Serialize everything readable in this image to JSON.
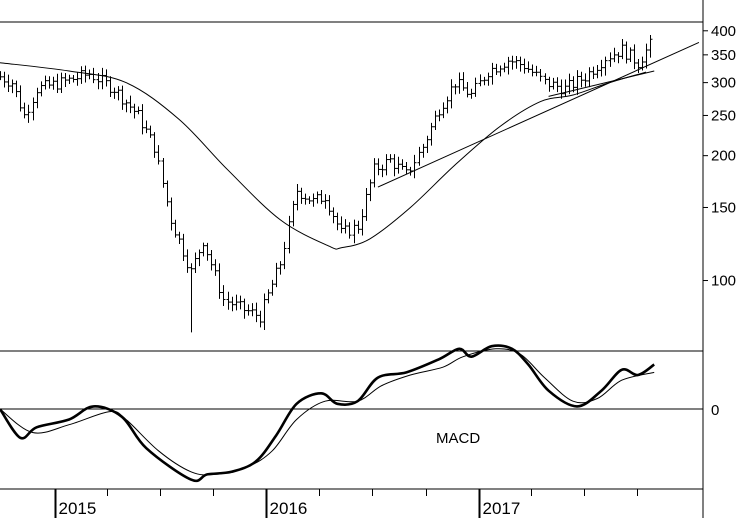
{
  "chart_data": [
    {
      "type": "ohlc",
      "scale": "log",
      "ylim": [
        68,
        420
      ],
      "yticks": [
        {
          "value": 400,
          "label": "400"
        },
        {
          "value": 350,
          "label": "350"
        },
        {
          "value": 300,
          "label": "300"
        },
        {
          "value": 250,
          "label": "250"
        },
        {
          "value": 200,
          "label": "200"
        },
        {
          "value": 150,
          "label": "150"
        },
        {
          "value": 100,
          "label": "100"
        }
      ],
      "x_axis": [
        {
          "date": "2015-01-01",
          "label": "2015"
        },
        {
          "date": "2015-04-01",
          "label": ""
        },
        {
          "date": "2015-07-01",
          "label": ""
        },
        {
          "date": "2015-10-01",
          "label": ""
        },
        {
          "date": "2016-01-01",
          "label": "2016"
        },
        {
          "date": "2016-04-01",
          "label": ""
        },
        {
          "date": "2016-07-01",
          "label": ""
        },
        {
          "date": "2016-10-01",
          "label": ""
        },
        {
          "date": "2017-01-01",
          "label": "2017"
        },
        {
          "date": "2017-04-01",
          "label": ""
        },
        {
          "date": "2017-07-01",
          "label": ""
        },
        {
          "date": "2017-10-01",
          "label": ""
        }
      ],
      "x_start": "2014-09-29",
      "x_end": "2018-01-22",
      "weekly_close_anchors": [
        {
          "date": "2014-09-29",
          "value": 310
        },
        {
          "date": "2014-10-20",
          "value": 300
        },
        {
          "date": "2014-11-10",
          "value": 250
        },
        {
          "date": "2014-12-01",
          "value": 290
        },
        {
          "date": "2015-01-12",
          "value": 300
        },
        {
          "date": "2015-03-02",
          "value": 315
        },
        {
          "date": "2015-04-13",
          "value": 290
        },
        {
          "date": "2015-05-25",
          "value": 250
        },
        {
          "date": "2015-06-22",
          "value": 210
        },
        {
          "date": "2015-07-20",
          "value": 140
        },
        {
          "date": "2015-08-24",
          "value": 105
        },
        {
          "date": "2015-09-14",
          "value": 125
        },
        {
          "date": "2015-10-19",
          "value": 90
        },
        {
          "date": "2015-11-23",
          "value": 85
        },
        {
          "date": "2015-12-21",
          "value": 82
        },
        {
          "date": "2016-01-25",
          "value": 110
        },
        {
          "date": "2016-02-22",
          "value": 165
        },
        {
          "date": "2016-03-21",
          "value": 155
        },
        {
          "date": "2016-04-11",
          "value": 160
        },
        {
          "date": "2016-05-09",
          "value": 130
        },
        {
          "date": "2016-06-06",
          "value": 135
        },
        {
          "date": "2016-07-04",
          "value": 185
        },
        {
          "date": "2016-08-01",
          "value": 195
        },
        {
          "date": "2016-08-29",
          "value": 180
        },
        {
          "date": "2016-09-26",
          "value": 210
        },
        {
          "date": "2016-10-24",
          "value": 260
        },
        {
          "date": "2016-11-21",
          "value": 300
        },
        {
          "date": "2016-12-19",
          "value": 280
        },
        {
          "date": "2017-01-16",
          "value": 320
        },
        {
          "date": "2017-02-20",
          "value": 340
        },
        {
          "date": "2017-03-20",
          "value": 330
        },
        {
          "date": "2017-04-24",
          "value": 300
        },
        {
          "date": "2017-05-29",
          "value": 290
        },
        {
          "date": "2017-07-03",
          "value": 310
        },
        {
          "date": "2017-08-07",
          "value": 345
        },
        {
          "date": "2017-09-04",
          "value": 360
        },
        {
          "date": "2017-10-02",
          "value": 335
        },
        {
          "date": "2017-10-23",
          "value": 370
        }
      ],
      "spikes": [
        {
          "date": "2015-08-24",
          "low": 75
        },
        {
          "date": "2015-12-28",
          "low": 76
        }
      ],
      "moving_average": [
        {
          "date": "2014-09-29",
          "value": 335
        },
        {
          "date": "2015-01-26",
          "value": 320
        },
        {
          "date": "2015-05-04",
          "value": 300
        },
        {
          "date": "2015-08-03",
          "value": 245
        },
        {
          "date": "2015-10-26",
          "value": 185
        },
        {
          "date": "2016-01-25",
          "value": 140
        },
        {
          "date": "2016-04-18",
          "value": 121
        },
        {
          "date": "2016-05-09",
          "value": 120
        },
        {
          "date": "2016-06-27",
          "value": 126
        },
        {
          "date": "2016-09-05",
          "value": 150
        },
        {
          "date": "2016-11-21",
          "value": 190
        },
        {
          "date": "2017-02-06",
          "value": 235
        },
        {
          "date": "2017-04-17",
          "value": 270
        },
        {
          "date": "2017-06-12",
          "value": 280
        },
        {
          "date": "2017-08-14",
          "value": 300
        },
        {
          "date": "2017-10-16",
          "value": 318
        }
      ],
      "trendlines": [
        {
          "start": {
            "date": "2016-07-11",
            "value": 168
          },
          "end": {
            "date": "2018-01-15",
            "value": 375
          }
        },
        {
          "start": {
            "date": "2017-05-01",
            "value": 278
          },
          "end": {
            "date": "2017-10-30",
            "value": 320
          }
        }
      ]
    },
    {
      "type": "line",
      "label": "MACD",
      "yticks": [
        {
          "value": 0,
          "label": "0"
        }
      ],
      "ylim": [
        -27,
        25
      ],
      "series": [
        {
          "style": "thick",
          "points": [
            {
              "date": "2014-09-29",
              "value": 0
            },
            {
              "date": "2014-11-03",
              "value": -11
            },
            {
              "date": "2014-12-01",
              "value": -7
            },
            {
              "date": "2015-01-26",
              "value": -4
            },
            {
              "date": "2015-03-09",
              "value": 1
            },
            {
              "date": "2015-04-27",
              "value": -3
            },
            {
              "date": "2015-06-08",
              "value": -15
            },
            {
              "date": "2015-08-24",
              "value": -27
            },
            {
              "date": "2015-09-21",
              "value": -25
            },
            {
              "date": "2015-11-02",
              "value": -24
            },
            {
              "date": "2015-12-14",
              "value": -20
            },
            {
              "date": "2016-01-18",
              "value": -10
            },
            {
              "date": "2016-02-22",
              "value": 2
            },
            {
              "date": "2016-04-04",
              "value": 6
            },
            {
              "date": "2016-05-02",
              "value": 2
            },
            {
              "date": "2016-06-06",
              "value": 3
            },
            {
              "date": "2016-07-11",
              "value": 12
            },
            {
              "date": "2016-08-29",
              "value": 14
            },
            {
              "date": "2016-10-24",
              "value": 19
            },
            {
              "date": "2016-11-28",
              "value": 23
            },
            {
              "date": "2016-12-19",
              "value": 20
            },
            {
              "date": "2017-01-23",
              "value": 24
            },
            {
              "date": "2017-02-27",
              "value": 23
            },
            {
              "date": "2017-03-27",
              "value": 17
            },
            {
              "date": "2017-05-01",
              "value": 7
            },
            {
              "date": "2017-06-19",
              "value": 1
            },
            {
              "date": "2017-07-31",
              "value": 7
            },
            {
              "date": "2017-09-04",
              "value": 15
            },
            {
              "date": "2017-10-02",
              "value": 13
            },
            {
              "date": "2017-10-30",
              "value": 17
            }
          ]
        },
        {
          "style": "thin",
          "points": [
            {
              "date": "2014-09-29",
              "value": 0
            },
            {
              "date": "2014-11-24",
              "value": -9
            },
            {
              "date": "2015-01-26",
              "value": -6
            },
            {
              "date": "2015-04-06",
              "value": -1
            },
            {
              "date": "2015-05-04",
              "value": -4
            },
            {
              "date": "2015-06-29",
              "value": -16
            },
            {
              "date": "2015-08-24",
              "value": -24
            },
            {
              "date": "2015-10-05",
              "value": -25
            },
            {
              "date": "2015-11-30",
              "value": -22
            },
            {
              "date": "2016-01-11",
              "value": -16
            },
            {
              "date": "2016-02-22",
              "value": -4
            },
            {
              "date": "2016-04-11",
              "value": 3
            },
            {
              "date": "2016-06-06",
              "value": 3
            },
            {
              "date": "2016-07-18",
              "value": 9
            },
            {
              "date": "2016-09-05",
              "value": 13
            },
            {
              "date": "2016-10-31",
              "value": 16
            },
            {
              "date": "2016-12-05",
              "value": 20
            },
            {
              "date": "2017-01-30",
              "value": 23
            },
            {
              "date": "2017-03-13",
              "value": 21
            },
            {
              "date": "2017-04-24",
              "value": 12
            },
            {
              "date": "2017-06-12",
              "value": 3
            },
            {
              "date": "2017-07-24",
              "value": 4
            },
            {
              "date": "2017-09-04",
              "value": 11
            },
            {
              "date": "2017-10-30",
              "value": 14
            }
          ]
        }
      ]
    }
  ]
}
